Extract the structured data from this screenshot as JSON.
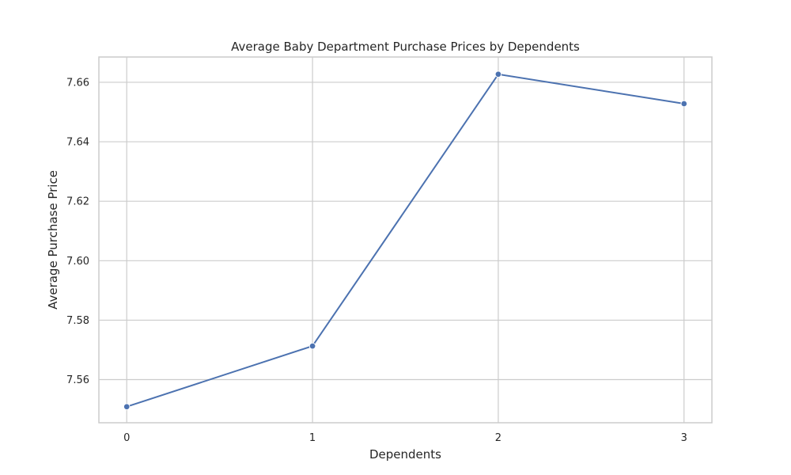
{
  "chart_data": {
    "type": "line",
    "title": "Average Baby Department Purchase Prices by Dependents",
    "xlabel": "Dependents",
    "ylabel": "Average Purchase Price",
    "x": [
      0,
      1,
      2,
      3
    ],
    "x_tick_labels": [
      "0",
      "1",
      "2",
      "3"
    ],
    "xlim": [
      -0.15,
      3.15
    ],
    "y_ticks": [
      7.56,
      7.58,
      7.6,
      7.62,
      7.64,
      7.66
    ],
    "y_tick_labels": [
      "7.56",
      "7.58",
      "7.60",
      "7.62",
      "7.64",
      "7.66"
    ],
    "ylim": [
      7.5455,
      7.6685
    ],
    "series": [
      {
        "values": [
          7.5509,
          7.5713,
          7.6627,
          7.6528
        ],
        "color": "#4c72b0",
        "marker": "circle"
      }
    ],
    "grid": true,
    "legend": "none"
  }
}
